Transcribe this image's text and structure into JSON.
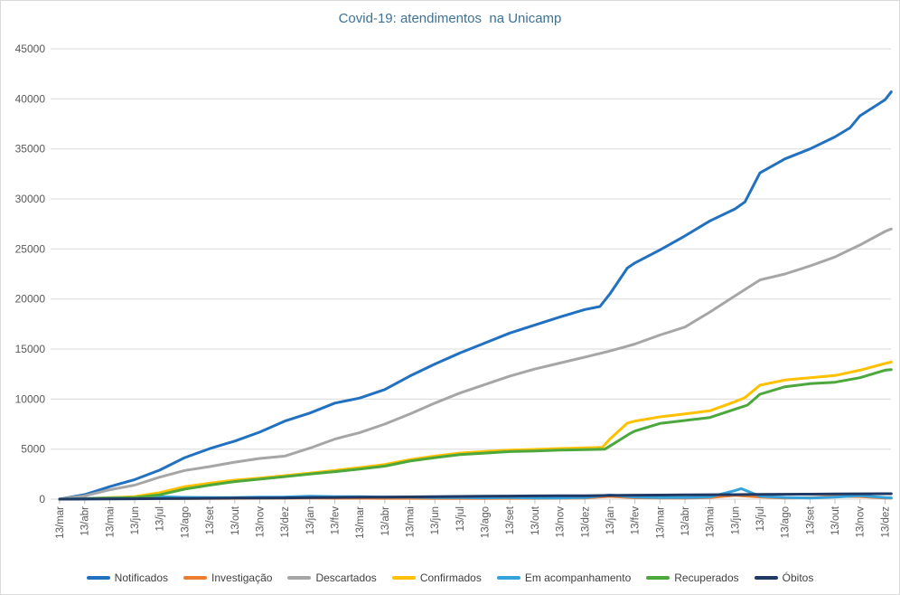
{
  "chart_data": {
    "type": "line",
    "title": "Covid-19: atendimentos  na Unicamp",
    "xlabel": "",
    "ylabel": "",
    "ylim": [
      0,
      45000
    ],
    "y_tick_step": 5000,
    "grid": true,
    "legend_position": "bottom",
    "x_labels": [
      "13/mar",
      "13/abr",
      "13/mai",
      "13/jun",
      "13/jul",
      "13/ago",
      "13/set",
      "13/out",
      "13/nov",
      "13/dez",
      "13/jan",
      "13/fev",
      "13/mar",
      "13/abr",
      "13/mai",
      "13/jun",
      "13/jul",
      "13/ago",
      "13/set",
      "13/out",
      "13/nov",
      "13/dez",
      "13/jan",
      "13/fev",
      "13/mar",
      "13/abr",
      "13/mai",
      "13/jun",
      "13/jul",
      "13/ago",
      "13/set",
      "13/out",
      "13/nov",
      "13/dez"
    ],
    "series": [
      {
        "name": "Notificados",
        "color": "#2171C0",
        "points": [
          [
            0,
            0
          ],
          [
            1,
            450
          ],
          [
            2,
            1250
          ],
          [
            3,
            1950
          ],
          [
            4,
            2900
          ],
          [
            5,
            4150
          ],
          [
            6,
            5050
          ],
          [
            7,
            5800
          ],
          [
            8,
            6700
          ],
          [
            9,
            7800
          ],
          [
            10,
            8600
          ],
          [
            11,
            9600
          ],
          [
            12,
            10100
          ],
          [
            13,
            10950
          ],
          [
            14,
            12300
          ],
          [
            15,
            13500
          ],
          [
            16,
            14600
          ],
          [
            17,
            15600
          ],
          [
            18,
            16600
          ],
          [
            19,
            17400
          ],
          [
            20,
            18200
          ],
          [
            21,
            18950
          ],
          [
            21.6,
            19250
          ],
          [
            22,
            20500
          ],
          [
            22.7,
            23100
          ],
          [
            23,
            23600
          ],
          [
            24,
            24900
          ],
          [
            25,
            26300
          ],
          [
            26,
            27800
          ],
          [
            27,
            29000
          ],
          [
            27.4,
            29700
          ],
          [
            28,
            32600
          ],
          [
            29,
            34000
          ],
          [
            30,
            35000
          ],
          [
            31,
            36200
          ],
          [
            31.6,
            37100
          ],
          [
            32,
            38300
          ],
          [
            33,
            39900
          ],
          [
            33.25,
            40700
          ]
        ]
      },
      {
        "name": "Investigação",
        "color": "#ED7D31",
        "points": [
          [
            0,
            0
          ],
          [
            1,
            90
          ],
          [
            2,
            70
          ],
          [
            3,
            60
          ],
          [
            4,
            80
          ],
          [
            5,
            70
          ],
          [
            6,
            70
          ],
          [
            7,
            80
          ],
          [
            8,
            90
          ],
          [
            9,
            90
          ],
          [
            10,
            120
          ],
          [
            11,
            90
          ],
          [
            12,
            90
          ],
          [
            13,
            80
          ],
          [
            14,
            80
          ],
          [
            15,
            70
          ],
          [
            16,
            70
          ],
          [
            17,
            70
          ],
          [
            18,
            80
          ],
          [
            19,
            80
          ],
          [
            20,
            90
          ],
          [
            21,
            110
          ],
          [
            22,
            280
          ],
          [
            23,
            140
          ],
          [
            24,
            110
          ],
          [
            25,
            100
          ],
          [
            26,
            160
          ],
          [
            27,
            380
          ],
          [
            28,
            220
          ],
          [
            29,
            120
          ],
          [
            30,
            140
          ],
          [
            31,
            280
          ],
          [
            32,
            260
          ],
          [
            33,
            120
          ],
          [
            33.25,
            100
          ]
        ]
      },
      {
        "name": "Descartados",
        "color": "#A6A6A6",
        "points": [
          [
            0,
            0
          ],
          [
            1,
            330
          ],
          [
            2,
            930
          ],
          [
            3,
            1400
          ],
          [
            4,
            2200
          ],
          [
            5,
            2860
          ],
          [
            6,
            3250
          ],
          [
            7,
            3700
          ],
          [
            8,
            4070
          ],
          [
            9,
            4300
          ],
          [
            10,
            5100
          ],
          [
            11,
            6000
          ],
          [
            12,
            6650
          ],
          [
            13,
            7500
          ],
          [
            14,
            8500
          ],
          [
            15,
            9600
          ],
          [
            16,
            10600
          ],
          [
            17,
            11450
          ],
          [
            18,
            12300
          ],
          [
            19,
            13000
          ],
          [
            20,
            13600
          ],
          [
            21,
            14200
          ],
          [
            22,
            14800
          ],
          [
            23,
            15500
          ],
          [
            24,
            16400
          ],
          [
            25,
            17200
          ],
          [
            26,
            18700
          ],
          [
            27,
            20300
          ],
          [
            28,
            21900
          ],
          [
            29,
            22500
          ],
          [
            30,
            23300
          ],
          [
            31,
            24200
          ],
          [
            32,
            25400
          ],
          [
            33,
            26750
          ],
          [
            33.25,
            27000
          ]
        ]
      },
      {
        "name": "Confirmados",
        "color": "#FFC000",
        "points": [
          [
            0,
            0
          ],
          [
            1,
            60
          ],
          [
            2,
            150
          ],
          [
            3,
            250
          ],
          [
            4,
            650
          ],
          [
            5,
            1250
          ],
          [
            6,
            1600
          ],
          [
            7,
            1900
          ],
          [
            8,
            2100
          ],
          [
            9,
            2350
          ],
          [
            10,
            2600
          ],
          [
            11,
            2870
          ],
          [
            12,
            3150
          ],
          [
            13,
            3460
          ],
          [
            14,
            3950
          ],
          [
            15,
            4300
          ],
          [
            16,
            4600
          ],
          [
            17,
            4760
          ],
          [
            18,
            4900
          ],
          [
            19,
            4970
          ],
          [
            20,
            5060
          ],
          [
            21,
            5120
          ],
          [
            21.7,
            5170
          ],
          [
            22,
            6000
          ],
          [
            22.7,
            7600
          ],
          [
            23,
            7800
          ],
          [
            24,
            8220
          ],
          [
            25,
            8520
          ],
          [
            26,
            8830
          ],
          [
            27,
            9730
          ],
          [
            27.4,
            10150
          ],
          [
            28,
            11390
          ],
          [
            29,
            11900
          ],
          [
            30,
            12140
          ],
          [
            31,
            12350
          ],
          [
            32,
            12890
          ],
          [
            33,
            13550
          ],
          [
            33.25,
            13700
          ]
        ]
      },
      {
        "name": "Em acompanhamento",
        "color": "#35A2DB",
        "points": [
          [
            0,
            0
          ],
          [
            1,
            60
          ],
          [
            2,
            120
          ],
          [
            3,
            150
          ],
          [
            4,
            250
          ],
          [
            5,
            180
          ],
          [
            6,
            150
          ],
          [
            7,
            160
          ],
          [
            8,
            200
          ],
          [
            9,
            220
          ],
          [
            10,
            300
          ],
          [
            11,
            250
          ],
          [
            12,
            250
          ],
          [
            13,
            200
          ],
          [
            14,
            200
          ],
          [
            15,
            160
          ],
          [
            16,
            150
          ],
          [
            17,
            140
          ],
          [
            18,
            150
          ],
          [
            19,
            120
          ],
          [
            20,
            120
          ],
          [
            21,
            160
          ],
          [
            22,
            420
          ],
          [
            23,
            200
          ],
          [
            24,
            150
          ],
          [
            25,
            150
          ],
          [
            26,
            220
          ],
          [
            27,
            850
          ],
          [
            27.25,
            1050
          ],
          [
            28,
            300
          ],
          [
            29,
            150
          ],
          [
            30,
            120
          ],
          [
            31,
            200
          ],
          [
            32,
            350
          ],
          [
            33,
            150
          ],
          [
            33.25,
            130
          ]
        ]
      },
      {
        "name": "Recuperados",
        "color": "#4CA83C",
        "points": [
          [
            0,
            0
          ],
          [
            1,
            30
          ],
          [
            2,
            90
          ],
          [
            3,
            160
          ],
          [
            4,
            430
          ],
          [
            5,
            1000
          ],
          [
            6,
            1400
          ],
          [
            7,
            1750
          ],
          [
            8,
            2000
          ],
          [
            9,
            2250
          ],
          [
            10,
            2500
          ],
          [
            11,
            2750
          ],
          [
            12,
            3000
          ],
          [
            13,
            3300
          ],
          [
            14,
            3800
          ],
          [
            15,
            4150
          ],
          [
            16,
            4450
          ],
          [
            17,
            4600
          ],
          [
            18,
            4750
          ],
          [
            19,
            4820
          ],
          [
            20,
            4900
          ],
          [
            21,
            4950
          ],
          [
            21.8,
            5000
          ],
          [
            22,
            5300
          ],
          [
            22.8,
            6550
          ],
          [
            23,
            6800
          ],
          [
            24,
            7560
          ],
          [
            25,
            7860
          ],
          [
            26,
            8160
          ],
          [
            27,
            8980
          ],
          [
            27.5,
            9400
          ],
          [
            28,
            10480
          ],
          [
            29,
            11230
          ],
          [
            30,
            11540
          ],
          [
            31,
            11680
          ],
          [
            32,
            12140
          ],
          [
            33,
            12890
          ],
          [
            33.25,
            12950
          ]
        ]
      },
      {
        "name": "Óbitos",
        "color": "#1F3864",
        "points": [
          [
            0,
            0
          ],
          [
            1,
            10
          ],
          [
            2,
            20
          ],
          [
            3,
            35
          ],
          [
            4,
            55
          ],
          [
            5,
            75
          ],
          [
            6,
            90
          ],
          [
            7,
            105
          ],
          [
            8,
            115
          ],
          [
            9,
            130
          ],
          [
            10,
            150
          ],
          [
            11,
            170
          ],
          [
            12,
            190
          ],
          [
            13,
            210
          ],
          [
            14,
            230
          ],
          [
            15,
            255
          ],
          [
            16,
            275
          ],
          [
            17,
            295
          ],
          [
            18,
            310
          ],
          [
            19,
            325
          ],
          [
            20,
            335
          ],
          [
            21,
            345
          ],
          [
            22,
            370
          ],
          [
            23,
            395
          ],
          [
            24,
            410
          ],
          [
            25,
            425
          ],
          [
            26,
            440
          ],
          [
            27,
            455
          ],
          [
            28,
            470
          ],
          [
            29,
            485
          ],
          [
            30,
            500
          ],
          [
            31,
            515
          ],
          [
            32,
            530
          ],
          [
            33,
            540
          ],
          [
            33.25,
            545
          ]
        ]
      }
    ],
    "style": {
      "gridline_color": "#D9D9D9",
      "tick_color": "#BFBFBF",
      "axis_label_color": "#595959",
      "title_color": "#3E7193",
      "legend_text_color": "#404040"
    }
  }
}
